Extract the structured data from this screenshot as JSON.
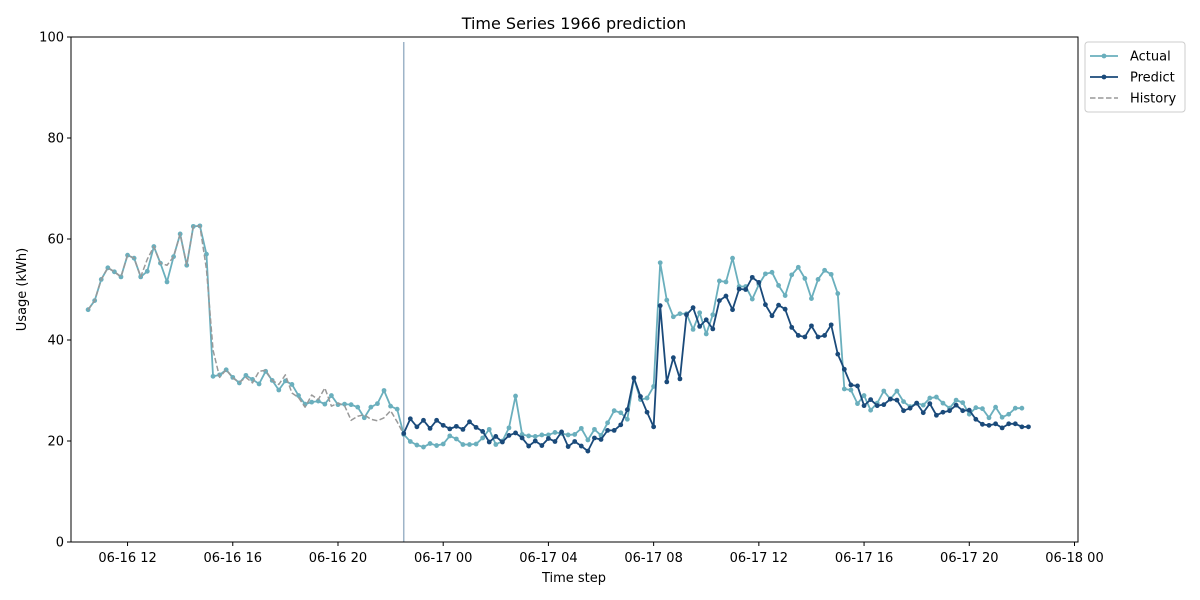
{
  "chart_data": {
    "type": "line",
    "title": "Time Series 1966 prediction",
    "xlabel": "Time step",
    "ylabel": "Usage (kWh)",
    "ylim": [
      0,
      100
    ],
    "yticks": [
      0,
      20,
      40,
      60,
      80,
      100
    ],
    "xlim": [
      "2023-06-16 09:51",
      "2023-06-18 00:08"
    ],
    "xticks": [
      {
        "t": "2023-06-16 12:00",
        "label": "06-16 12"
      },
      {
        "t": "2023-06-16 16:00",
        "label": "06-16 16"
      },
      {
        "t": "2023-06-16 20:00",
        "label": "06-16 20"
      },
      {
        "t": "2023-06-17 00:00",
        "label": "06-17 00"
      },
      {
        "t": "2023-06-17 04:00",
        "label": "06-17 04"
      },
      {
        "t": "2023-06-17 08:00",
        "label": "06-17 08"
      },
      {
        "t": "2023-06-17 12:00",
        "label": "06-17 12"
      },
      {
        "t": "2023-06-17 16:00",
        "label": "06-17 16"
      },
      {
        "t": "2023-06-17 20:00",
        "label": "06-17 20"
      },
      {
        "t": "2023-06-18 00:00",
        "label": "06-18 00"
      }
    ],
    "start": "2023-06-16 10:30",
    "interval_minutes": 15,
    "forecast_start": "2023-06-16 22:30",
    "vline_ylim": [
      0,
      99
    ],
    "series": [
      {
        "name": "Actual",
        "color": "#6aafbd",
        "style": "solid",
        "marker": true,
        "values": [
          46.0,
          47.8,
          52.0,
          54.3,
          53.5,
          52.5,
          56.8,
          56.2,
          52.5,
          53.6,
          58.5,
          55.2,
          51.5,
          56.5,
          61.0,
          54.8,
          62.5,
          62.6,
          57.0,
          32.8,
          33.1,
          34.1,
          32.6,
          31.5,
          33.0,
          32.2,
          31.3,
          33.8,
          32.0,
          30.1,
          31.9,
          31.2,
          29.0,
          27.3,
          27.7,
          27.9,
          27.3,
          29.0,
          27.2,
          27.3,
          27.2,
          26.7,
          24.6,
          26.7,
          27.4,
          30.0,
          26.9,
          26.3,
          21.3,
          19.9,
          19.2,
          18.8,
          19.5,
          19.1,
          19.4,
          21.0,
          20.4,
          19.3,
          19.3,
          19.4,
          20.6,
          22.3,
          19.3,
          20.0,
          22.6,
          28.9,
          21.3,
          21.0,
          20.9,
          21.2,
          21.2,
          21.7,
          21.5,
          21.2,
          21.3,
          22.5,
          20.2,
          22.3,
          21.1,
          23.6,
          26.0,
          25.6,
          24.3,
          32.4,
          28.2,
          28.5,
          30.8,
          55.3,
          47.9,
          44.6,
          45.2,
          45.2,
          42.1,
          45.4,
          41.2,
          45.0,
          51.7,
          51.5,
          56.2,
          50.6,
          50.6,
          48.1,
          51.0,
          53.1,
          53.4,
          50.8,
          48.8,
          52.9,
          54.4,
          52.2,
          48.2,
          52.0,
          53.8,
          53.0,
          49.2,
          30.3,
          30.1,
          27.4,
          29.0,
          26.1,
          27.5,
          29.9,
          28.3,
          29.9,
          27.8,
          26.8,
          27.5,
          27.1,
          28.5,
          28.7,
          27.5,
          26.5,
          28.1,
          27.6,
          25.3,
          26.6,
          26.4,
          24.6,
          26.7,
          24.7,
          25.3,
          26.5,
          26.5
        ]
      },
      {
        "name": "Predict",
        "color": "#1a4a7a",
        "style": "solid",
        "marker": true,
        "offset": 48,
        "values": [
          21.5,
          24.4,
          22.8,
          24.1,
          22.5,
          24.1,
          23.1,
          22.4,
          22.9,
          22.3,
          23.8,
          22.7,
          21.9,
          19.8,
          20.9,
          19.8,
          21.1,
          21.6,
          20.6,
          19.0,
          20.0,
          19.1,
          20.5,
          19.9,
          21.8,
          18.9,
          19.9,
          19.0,
          18.0,
          20.6,
          20.3,
          22.1,
          22.1,
          23.2,
          26.2,
          32.5,
          28.8,
          25.7,
          22.8,
          46.8,
          31.7,
          36.5,
          32.3,
          45.0,
          46.4,
          42.7,
          44.0,
          42.2,
          47.8,
          48.7,
          46.0,
          50.1,
          50.0,
          52.4,
          51.4,
          47.0,
          44.8,
          46.9,
          46.1,
          42.5,
          40.9,
          40.6,
          42.8,
          40.6,
          40.9,
          43.0,
          37.2,
          34.2,
          31.1,
          30.9,
          27.0,
          28.2,
          27.0,
          27.2,
          28.3,
          28.1,
          26.0,
          26.5,
          27.5,
          25.6,
          27.4,
          25.1,
          25.7,
          26.0,
          27.1,
          26.0,
          26.1,
          24.3,
          23.3,
          23.1,
          23.4,
          22.6,
          23.4,
          23.4,
          22.8,
          22.8
        ]
      },
      {
        "name": "History",
        "color": "#999999",
        "style": "dashed",
        "marker": false,
        "values": [
          46.0,
          47.8,
          52.0,
          54.3,
          53.5,
          52.5,
          56.8,
          56.2,
          52.5,
          56.0,
          58.5,
          55.2,
          54.8,
          56.5,
          61.0,
          54.8,
          62.5,
          62.6,
          54.0,
          38.0,
          32.6,
          34.1,
          32.5,
          31.6,
          32.6,
          31.5,
          33.8,
          34.0,
          32.0,
          31.2,
          33.1,
          29.5,
          28.6,
          26.7,
          29.1,
          28.2,
          30.5,
          26.9,
          27.5,
          27.0,
          24.1,
          24.9,
          25.2,
          24.3,
          24.0,
          24.6,
          26.0,
          23.8,
          21.3
        ]
      }
    ]
  },
  "legend": {
    "items": [
      {
        "label": "Actual",
        "color": "#6aafbd",
        "style": "solid",
        "marker": true
      },
      {
        "label": "Predict",
        "color": "#1a4a7a",
        "style": "solid",
        "marker": true
      },
      {
        "label": "History",
        "color": "#999999",
        "style": "dashed",
        "marker": false
      }
    ]
  },
  "colors": {
    "vline": "#9eb4c8",
    "axis": "#000000"
  }
}
